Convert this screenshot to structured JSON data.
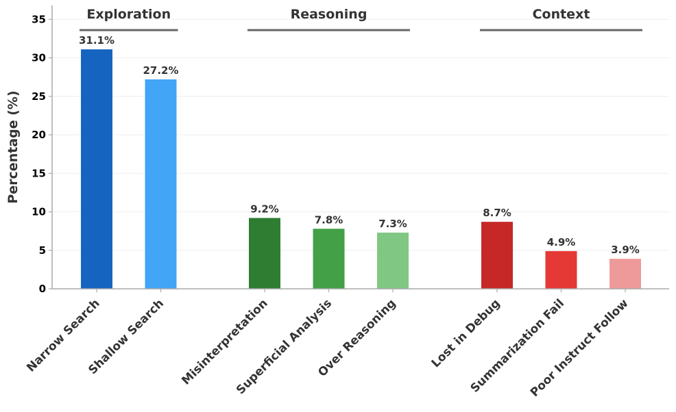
{
  "chart_data": {
    "type": "bar",
    "title": "",
    "xlabel": "",
    "ylabel": "Percentage (%)",
    "ylim": [
      0,
      36.5
    ],
    "yticks": [
      "0",
      "5",
      "10",
      "15",
      "20",
      "25",
      "30",
      "35"
    ],
    "grid": "horizontal",
    "groups": [
      {
        "name": "Exploration",
        "categories": [
          "Narrow Search",
          "Shallow Search"
        ],
        "values": [
          31.1,
          27.2
        ],
        "labels": [
          "31.1%",
          "27.2%"
        ],
        "colors": [
          "#1565c0",
          "#42a5f5"
        ]
      },
      {
        "name": "Reasoning",
        "categories": [
          "Misinterpretation",
          "Superficial Analysis",
          "Over Reasoning"
        ],
        "values": [
          9.2,
          7.8,
          7.3
        ],
        "labels": [
          "9.2%",
          "7.8%",
          "7.3%"
        ],
        "colors": [
          "#2e7d32",
          "#43a047",
          "#81c784"
        ]
      },
      {
        "name": "Context",
        "categories": [
          "Lost in Debug",
          "Summarization Fail",
          "Poor Instruct Follow"
        ],
        "values": [
          8.7,
          4.9,
          3.9
        ],
        "labels": [
          "8.7%",
          "4.9%",
          "3.9%"
        ],
        "colors": [
          "#c62828",
          "#e53935",
          "#ef9a9a"
        ]
      }
    ]
  }
}
